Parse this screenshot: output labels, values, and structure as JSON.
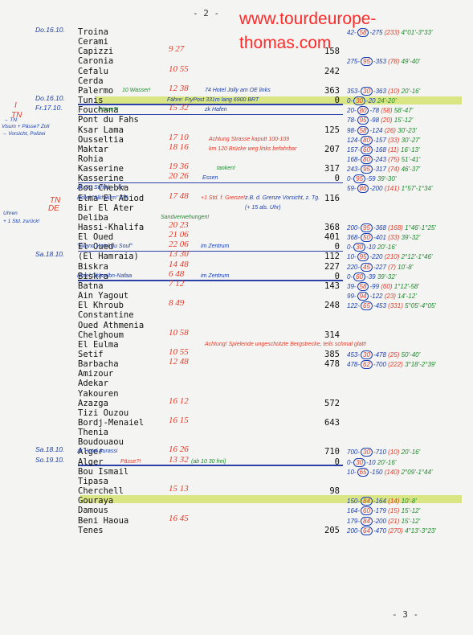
{
  "page_top": "- 2 -",
  "page_bottom": "- 3 -",
  "watermark": {
    "line1": "www.tourdeurope-",
    "line2": "thomas.com"
  },
  "places": [
    {
      "name": "Troina",
      "km": ""
    },
    {
      "name": "Cerami",
      "km": ""
    },
    {
      "name": "Capizzi",
      "km": "158"
    },
    {
      "name": "Caronia",
      "km": ""
    },
    {
      "name": "Cefalu",
      "km": "242"
    },
    {
      "name": "Cerda",
      "km": ""
    },
    {
      "name": "Palermo",
      "km": "363"
    },
    {
      "name": "Tunis",
      "km": "0"
    },
    {
      "name": "Fouchana",
      "km": ""
    },
    {
      "name": "Pont du Fahs",
      "km": ""
    },
    {
      "name": "Ksar Lama",
      "km": "125"
    },
    {
      "name": "Ousseltia",
      "km": ""
    },
    {
      "name": "Maktar",
      "km": "207"
    },
    {
      "name": "Rohia",
      "km": ""
    },
    {
      "name": "Kasserine",
      "km": "317"
    },
    {
      "name": "Kasserine",
      "km": "0"
    },
    {
      "name": "Bou Chebka",
      "km": ""
    },
    {
      "name": "Elma El Abiod",
      "km": "116"
    },
    {
      "name": "Bir El Ater",
      "km": ""
    },
    {
      "name": "Deliba",
      "km": ""
    },
    {
      "name": "Hassi-Khalifa",
      "km": "368"
    },
    {
      "name": "El Oued",
      "km": "401"
    },
    {
      "name": "El Oued",
      "km": "0"
    },
    {
      "name": "(El Hamraia)",
      "km": "112"
    },
    {
      "name": "Biskra",
      "km": "227"
    },
    {
      "name": "Biskra",
      "km": "0"
    },
    {
      "name": "Batna",
      "km": "143"
    },
    {
      "name": "Ain Yagout",
      "km": ""
    },
    {
      "name": "El Khroub",
      "km": "248"
    },
    {
      "name": "Constantine",
      "km": ""
    },
    {
      "name": "Oued Athmenia",
      "km": ""
    },
    {
      "name": "Chelghoum",
      "km": "314"
    },
    {
      "name": "El Eulma",
      "km": ""
    },
    {
      "name": "Setif",
      "km": "385"
    },
    {
      "name": "Barbacha",
      "km": "478"
    },
    {
      "name": "Amizour",
      "km": ""
    },
    {
      "name": "Adekar",
      "km": ""
    },
    {
      "name": "Yakouren",
      "km": ""
    },
    {
      "name": "Azazga",
      "km": "572"
    },
    {
      "name": "Tizi Ouzou",
      "km": ""
    },
    {
      "name": "Bordj-Menaiel",
      "km": "643"
    },
    {
      "name": "Thenia",
      "km": ""
    },
    {
      "name": "Boudouaou",
      "km": ""
    },
    {
      "name": "Alger",
      "km": "710"
    },
    {
      "name": "Alger",
      "km": "0"
    },
    {
      "name": "Bou Ismail",
      "km": ""
    },
    {
      "name": "Tipasa",
      "km": ""
    },
    {
      "name": "Cherchell",
      "km": "98"
    },
    {
      "name": "Gouraya",
      "km": ""
    },
    {
      "name": "Damous",
      "km": ""
    },
    {
      "name": "Beni Haoua",
      "km": ""
    },
    {
      "name": "Tenes",
      "km": "205"
    }
  ],
  "dates": [
    {
      "text": "Do.16.10."
    },
    {
      "text": "Do.16.10."
    },
    {
      "text": "Fr.17.10."
    },
    {
      "text": "Sa.18.10."
    },
    {
      "text": "Sa.18.10."
    },
    {
      "text": "So.19.10."
    }
  ],
  "times": [
    {
      "text": "9 27"
    },
    {
      "text": "10 55"
    },
    {
      "text": "12 38"
    },
    {
      "text": "15 32"
    },
    {
      "text": "17 10"
    },
    {
      "text": "18 16"
    },
    {
      "text": "19 36"
    },
    {
      "text": "20 26"
    },
    {
      "text": "17 48"
    },
    {
      "text": "20 23"
    },
    {
      "text": "21 06"
    },
    {
      "text": "22 06"
    },
    {
      "text": "13 30"
    },
    {
      "text": "14 48"
    },
    {
      "text": "6 48"
    },
    {
      "text": "7 12"
    },
    {
      "text": "8 49"
    },
    {
      "text": "10 58"
    },
    {
      "text": "10 55"
    },
    {
      "text": "12 48"
    },
    {
      "text": "16 12"
    },
    {
      "text": "16 15"
    },
    {
      "text": "16 26"
    },
    {
      "text": "13 32"
    },
    {
      "text": "15 13"
    },
    {
      "text": "16 45"
    }
  ],
  "notes": [
    {
      "text": "10 Wasser!",
      "cls": "green"
    },
    {
      "text": "74 Hotel Jolly am OE links",
      "cls": "blue"
    },
    {
      "text": "Fähre: FryPost 331m lang 6900 BRT",
      "cls": "blue"
    },
    {
      "text": "Pässe?!",
      "cls": "green"
    },
    {
      "text": "zk Hafen",
      "cls": "blue"
    },
    {
      "text": "Achtung Strasse kaputt 100-109",
      "cls": "red"
    },
    {
      "text": "km 120 Brücke weg links befahrbar",
      "cls": "red"
    },
    {
      "text": "tanken!",
      "cls": "green"
    },
    {
      "text": "Essen",
      "cls": "blue"
    },
    {
      "text": "zk OE Schild → km",
      "cls": "blue"
    },
    {
      "text": "Hotel \"Alkhilium\" OE",
      "cls": "blue"
    },
    {
      "text": "+1 Std. f. Grenze!",
      "cls": "red"
    },
    {
      "text": "z.B. d. Grenze Vorsicht, z. Tg.",
      "cls": "blue"
    },
    {
      "text": "(+ 15 als. Uhr)",
      "cls": "blue"
    },
    {
      "text": "Sandverwehungen!",
      "cls": "green"
    },
    {
      "text": "\"Grand Hotel du Souf\"",
      "cls": "blue"
    },
    {
      "text": "im Zentrum",
      "cls": "blue"
    },
    {
      "text": "Hotel Okba-Ibn-Nafaa",
      "cls": "blue"
    },
    {
      "text": "im Zentrum",
      "cls": "blue"
    },
    {
      "text": "Achtung! Spielende ungeschützte Bergstrecke, teils schmal glatt!",
      "cls": "red"
    },
    {
      "text": "zk Hotel Aurassi",
      "cls": "blue"
    },
    {
      "text": "Pässe?!",
      "cls": "red"
    },
    {
      "text": "(ab 10 30 frei)",
      "cls": "green"
    }
  ],
  "margin_notes": [
    {
      "text": "I",
      "cls": "red"
    },
    {
      "text": "TN",
      "cls": "red"
    },
    {
      "text": "→ TN:",
      "cls": "blue"
    },
    {
      "text": "Visum + Pässe? Zoll",
      "cls": "blue"
    },
    {
      "text": "→ Vorsicht, Polizei",
      "cls": "blue"
    },
    {
      "text": "TN",
      "cls": "red"
    },
    {
      "text": "DE",
      "cls": "red"
    },
    {
      "text": "Uhren",
      "cls": "blue"
    },
    {
      "text": "+ 1 Std. zurück!",
      "cls": "blue"
    }
  ],
  "route_lines": [
    {
      "a": "42",
      "speed": "58",
      "b": "275",
      "c": "(233)",
      "t": "4°01'-3°33'"
    },
    {
      "a": "275",
      "speed": "95",
      "b": "353",
      "c": "(78)",
      "t": "49'-40'"
    },
    {
      "a": "353",
      "speed": "30",
      "b": "363",
      "c": "(10)",
      "t": "20'-16'"
    },
    {
      "a": "0",
      "speed": "30",
      "b": "20",
      "c": "",
      "t": "24'-20'"
    },
    {
      "a": "20",
      "speed": "80",
      "b": "78",
      "c": "(58)",
      "t": "58'-47'"
    },
    {
      "a": "78",
      "speed": "95",
      "b": "98",
      "c": "(20)",
      "t": "15'-12'"
    },
    {
      "a": "98",
      "speed": "58",
      "b": "124",
      "c": "(26)",
      "t": "30'-23'"
    },
    {
      "a": "124",
      "speed": "80",
      "b": "157",
      "c": "(33)",
      "t": "30'-27'"
    },
    {
      "a": "157",
      "speed": "60",
      "b": "168",
      "c": "(11)",
      "t": "16'-13'"
    },
    {
      "a": "168",
      "speed": "80",
      "b": "243",
      "c": "(75)",
      "t": "51'-41'"
    },
    {
      "a": "243",
      "speed": "95",
      "b": "317",
      "c": "(74)",
      "t": "46'-37'"
    },
    {
      "a": "0",
      "speed": "95",
      "b": "59",
      "c": "",
      "t": "39'-30'"
    },
    {
      "a": "59",
      "speed": "86",
      "b": "200",
      "c": "(141)",
      "t": "1°57'-1°34'"
    },
    {
      "a": "200",
      "speed": "95",
      "b": "368",
      "c": "(168)",
      "t": "1°46'-1°25'"
    },
    {
      "a": "368",
      "speed": "50",
      "b": "401",
      "c": "(33)",
      "t": "39'-32'"
    },
    {
      "a": "0",
      "speed": "30",
      "b": "10",
      "c": "",
      "t": "20'-16'"
    },
    {
      "a": "10",
      "speed": "95",
      "b": "220",
      "c": "(210)",
      "t": "2°12'-1°46'"
    },
    {
      "a": "220",
      "speed": "45",
      "b": "227",
      "c": "(7)",
      "t": "10'-8'"
    },
    {
      "a": "0",
      "speed": "60",
      "b": "39",
      "c": "",
      "t": "39'-32'"
    },
    {
      "a": "39",
      "speed": "58",
      "b": "99",
      "c": "(60)",
      "t": "1°12'-58'"
    },
    {
      "a": "99",
      "speed": "94",
      "b": "122",
      "c": "(23)",
      "t": "14'-12'"
    },
    {
      "a": "122",
      "speed": "65",
      "b": "453",
      "c": "(331)",
      "t": "5°05'-4°05'"
    },
    {
      "a": "453",
      "speed": "30",
      "b": "478",
      "c": "(25)",
      "t": "50'-40'"
    },
    {
      "a": "478",
      "speed": "62",
      "b": "700",
      "c": "(222)",
      "t": "3°18'-2°39'"
    },
    {
      "a": "700",
      "speed": "30",
      "b": "710",
      "c": "(10)",
      "t": "20'-16'"
    },
    {
      "a": "0",
      "speed": "30",
      "b": "10",
      "c": "",
      "t": "20'-16'"
    },
    {
      "a": "10",
      "speed": "65",
      "b": "150",
      "c": "(140)",
      "t": "2°09'-1°44'"
    },
    {
      "a": "150",
      "speed": "84",
      "b": "164",
      "c": "(14)",
      "t": "10'-8'"
    },
    {
      "a": "164",
      "speed": "60",
      "b": "179",
      "c": "(15)",
      "t": "15'-12'"
    },
    {
      "a": "179",
      "speed": "84",
      "b": "200",
      "c": "(21)",
      "t": "15'-12'"
    },
    {
      "a": "200",
      "speed": "64",
      "b": "470",
      "c": "(270)",
      "t": "4°13'-3°23'"
    }
  ]
}
